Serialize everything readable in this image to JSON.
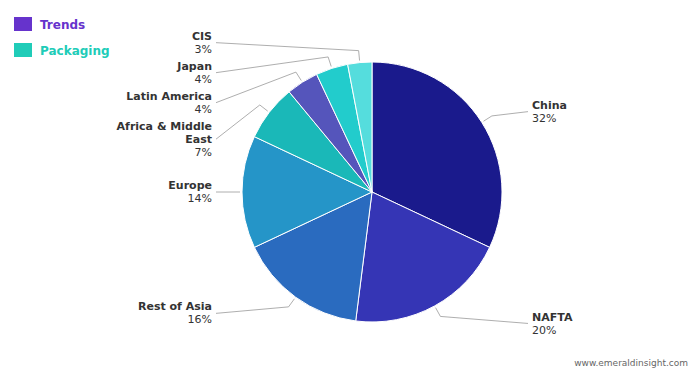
{
  "chart_data": {
    "type": "pie",
    "categories": [
      "China",
      "NAFTA",
      "Rest of Asia",
      "Europe",
      "Africa & Middle\nEast",
      "Latin America",
      "Japan",
      "CIS"
    ],
    "values": [
      32,
      20,
      16,
      14,
      7,
      4,
      4,
      3
    ],
    "value_labels": [
      "32%",
      "20%",
      "16%",
      "14%",
      "7%",
      "4%",
      "4%",
      "3%"
    ],
    "colors": [
      "#1a1a8c",
      "#3535b5",
      "#2a6bbf",
      "#2595c8",
      "#1ab8b8",
      "#5555bb",
      "#22cccc",
      "#55dddd"
    ],
    "data_labels": true,
    "annotations": [
      {
        "text": "Trends",
        "color": "#6633cc"
      },
      {
        "text": "Packaging",
        "color": "#20ccb8"
      },
      {
        "text": "www.emeraldinsight.com"
      }
    ]
  }
}
